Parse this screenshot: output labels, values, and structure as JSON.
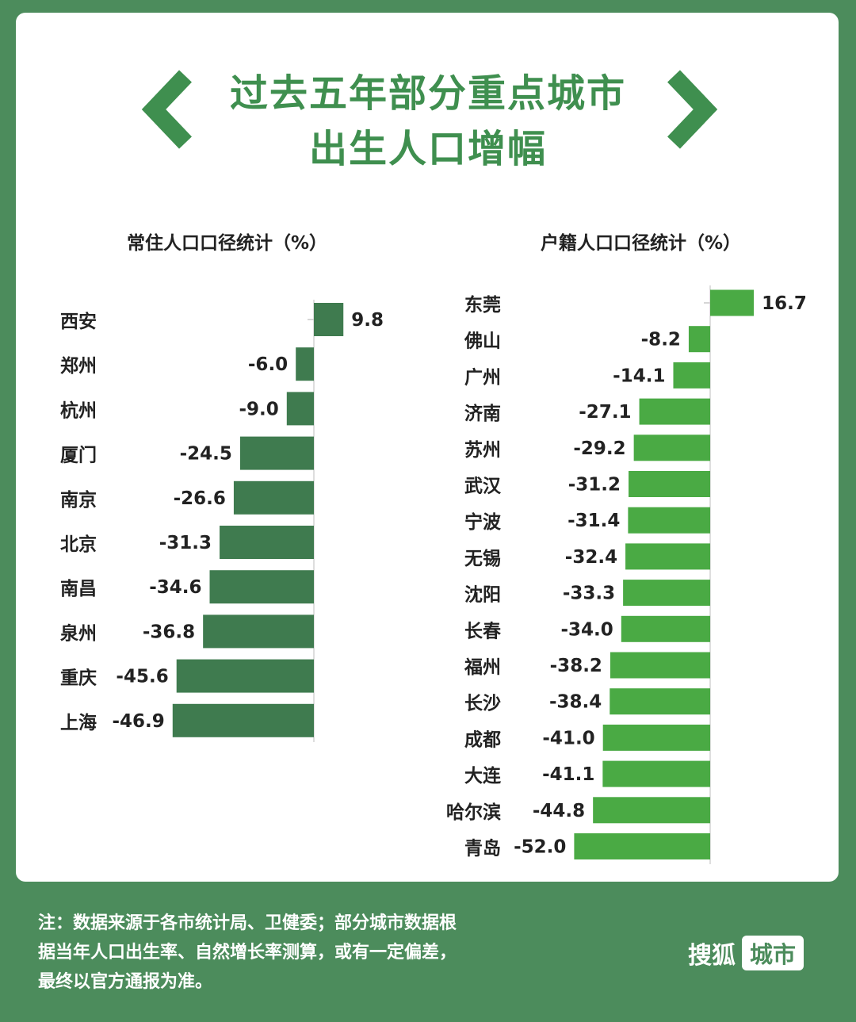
{
  "title": {
    "line1": "过去五年部分重点城市",
    "line2": "出生人口增幅"
  },
  "colors": {
    "background": "#4c8c5c",
    "title": "#3f8f4f",
    "left_bar": "#3f7b4f",
    "right_bar": "#4aaa44"
  },
  "icons": {
    "left": "chevron-left-icon",
    "right": "chevron-right-icon"
  },
  "chart_data": [
    {
      "type": "bar",
      "orientation": "horizontal",
      "title": "常住人口口径统计（%）",
      "categories": [
        "西安",
        "郑州",
        "杭州",
        "厦门",
        "南京",
        "北京",
        "南昌",
        "泉州",
        "重庆",
        "上海"
      ],
      "values": [
        9.8,
        -6.0,
        -9.0,
        -24.5,
        -26.6,
        -31.3,
        -34.6,
        -36.8,
        -45.6,
        -46.9
      ],
      "labels": [
        "9.8",
        "-6.0",
        "-9.0",
        "-24.5",
        "-26.6",
        "-31.3",
        "-34.6",
        "-36.8",
        "-45.6",
        "-46.9"
      ]
    },
    {
      "type": "bar",
      "orientation": "horizontal",
      "title": "户籍人口口径统计（%）",
      "categories": [
        "东莞",
        "佛山",
        "广州",
        "济南",
        "苏州",
        "武汉",
        "宁波",
        "无锡",
        "沈阳",
        "长春",
        "福州",
        "长沙",
        "成都",
        "大连",
        "哈尔滨",
        "青岛"
      ],
      "values": [
        16.7,
        -8.2,
        -14.1,
        -27.1,
        -29.2,
        -31.2,
        -31.4,
        -32.4,
        -33.3,
        -34.0,
        -38.2,
        -38.4,
        -41.0,
        -41.1,
        -44.8,
        -52.0
      ],
      "labels": [
        "16.7",
        "-8.2",
        "-14.1",
        "-27.1",
        "-29.2",
        "-31.2",
        "-31.4",
        "-32.4",
        "-33.3",
        "-34.0",
        "-38.2",
        "-38.4",
        "-41.0",
        "-41.1",
        "-44.8",
        "-52.0"
      ]
    }
  ],
  "note": {
    "line1": "注：数据来源于各市统计局、卫健委；部分城市数据根",
    "line2": "据当年人口出生率、自然增长率测算，或有一定偏差，",
    "line3": "最终以官方通报为准。"
  },
  "brand": {
    "name": "搜狐",
    "tag": "城市"
  }
}
